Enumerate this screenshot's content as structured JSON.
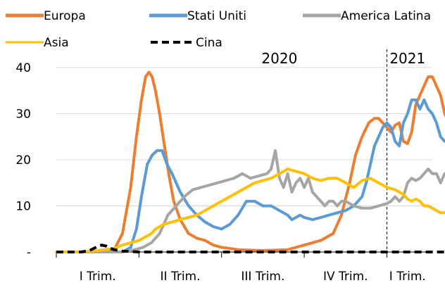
{
  "chart_data": {
    "type": "line",
    "title": "",
    "xlabel": "",
    "ylabel": "",
    "ylim": [
      0,
      40
    ],
    "y_ticks": [
      "-",
      "10",
      "20",
      "30",
      "40"
    ],
    "y_tick_values": [
      0,
      10,
      20,
      30,
      40
    ],
    "x_tick_labels": [
      "I Trim.",
      "II Trim.",
      "III Trim.",
      "IV Trim.",
      "I Trim."
    ],
    "x_tick_positions": [
      0.5,
      1.5,
      2.5,
      3.5,
      4.25
    ],
    "xlim": [
      0,
      4.55
    ],
    "quarter_boundaries": [
      1,
      2,
      3,
      4
    ],
    "year_labels": [
      {
        "text": "2020",
        "x": 2.7
      },
      {
        "text": "2021",
        "x": 4.25
      }
    ],
    "year_divider_x": 4.0,
    "grid": "horizontal",
    "legend_position": "top",
    "series": [
      {
        "name": "Europa",
        "color": "#ED7D31",
        "dash": "solid",
        "points": [
          [
            0.0,
            0
          ],
          [
            0.55,
            0
          ],
          [
            0.7,
            0.5
          ],
          [
            0.8,
            4
          ],
          [
            0.9,
            14
          ],
          [
            0.97,
            25
          ],
          [
            1.03,
            33
          ],
          [
            1.08,
            38
          ],
          [
            1.12,
            39
          ],
          [
            1.16,
            38
          ],
          [
            1.2,
            35
          ],
          [
            1.25,
            30
          ],
          [
            1.3,
            24
          ],
          [
            1.36,
            17
          ],
          [
            1.42,
            11
          ],
          [
            1.5,
            7
          ],
          [
            1.6,
            4
          ],
          [
            1.7,
            3
          ],
          [
            1.8,
            2.5
          ],
          [
            1.9,
            1.5
          ],
          [
            2.0,
            1
          ],
          [
            2.2,
            0.5
          ],
          [
            2.5,
            0.3
          ],
          [
            2.8,
            0.5
          ],
          [
            3.0,
            1.5
          ],
          [
            3.2,
            2.5
          ],
          [
            3.35,
            4
          ],
          [
            3.45,
            8
          ],
          [
            3.55,
            15
          ],
          [
            3.62,
            21
          ],
          [
            3.7,
            25
          ],
          [
            3.78,
            28
          ],
          [
            3.85,
            29
          ],
          [
            3.9,
            29
          ],
          [
            3.95,
            28
          ],
          [
            4.0,
            27
          ],
          [
            4.05,
            26
          ],
          [
            4.1,
            27.5
          ],
          [
            4.15,
            28
          ],
          [
            4.2,
            24
          ],
          [
            4.25,
            23.5
          ],
          [
            4.3,
            26
          ],
          [
            4.35,
            32
          ],
          [
            4.4,
            34
          ],
          [
            4.45,
            36
          ],
          [
            4.5,
            38
          ],
          [
            4.55,
            38
          ],
          [
            4.6,
            36
          ],
          [
            4.65,
            34
          ],
          [
            4.7,
            30
          ],
          [
            4.75,
            28
          ],
          [
            4.78,
            26
          ]
        ]
      },
      {
        "name": "Stati Uniti",
        "color": "#5B9BD5",
        "dash": "solid",
        "points": [
          [
            0.0,
            0
          ],
          [
            0.8,
            0
          ],
          [
            0.9,
            1
          ],
          [
            0.97,
            5
          ],
          [
            1.03,
            12
          ],
          [
            1.1,
            19
          ],
          [
            1.16,
            21
          ],
          [
            1.22,
            22
          ],
          [
            1.28,
            22
          ],
          [
            1.34,
            19
          ],
          [
            1.4,
            17
          ],
          [
            1.5,
            13
          ],
          [
            1.6,
            10
          ],
          [
            1.7,
            8
          ],
          [
            1.8,
            6.5
          ],
          [
            1.9,
            5.5
          ],
          [
            2.0,
            5
          ],
          [
            2.1,
            6
          ],
          [
            2.2,
            8
          ],
          [
            2.3,
            11
          ],
          [
            2.4,
            11
          ],
          [
            2.5,
            10
          ],
          [
            2.6,
            10
          ],
          [
            2.7,
            9
          ],
          [
            2.8,
            8
          ],
          [
            2.85,
            7
          ],
          [
            2.9,
            7.5
          ],
          [
            2.95,
            8
          ],
          [
            3.0,
            7.5
          ],
          [
            3.1,
            7
          ],
          [
            3.2,
            7.5
          ],
          [
            3.3,
            8
          ],
          [
            3.4,
            8.5
          ],
          [
            3.5,
            9
          ],
          [
            3.6,
            10
          ],
          [
            3.7,
            12
          ],
          [
            3.75,
            15
          ],
          [
            3.8,
            19
          ],
          [
            3.85,
            23
          ],
          [
            3.9,
            25
          ],
          [
            3.95,
            27
          ],
          [
            4.0,
            28
          ],
          [
            4.05,
            27
          ],
          [
            4.1,
            24
          ],
          [
            4.15,
            23
          ],
          [
            4.2,
            28
          ],
          [
            4.25,
            30
          ],
          [
            4.3,
            33
          ],
          [
            4.35,
            33
          ],
          [
            4.4,
            31
          ],
          [
            4.45,
            33
          ],
          [
            4.5,
            31
          ],
          [
            4.55,
            30
          ],
          [
            4.6,
            28
          ],
          [
            4.65,
            25
          ],
          [
            4.7,
            24
          ],
          [
            4.75,
            24
          ],
          [
            4.78,
            23
          ]
        ]
      },
      {
        "name": "America Latina",
        "color": "#A5A5A5",
        "dash": "solid",
        "points": [
          [
            0.0,
            0
          ],
          [
            0.8,
            0
          ],
          [
            0.95,
            0.5
          ],
          [
            1.05,
            1
          ],
          [
            1.15,
            2
          ],
          [
            1.25,
            4
          ],
          [
            1.35,
            8
          ],
          [
            1.45,
            10
          ],
          [
            1.55,
            12
          ],
          [
            1.65,
            13.5
          ],
          [
            1.75,
            14
          ],
          [
            1.85,
            14.5
          ],
          [
            1.95,
            15
          ],
          [
            2.05,
            15.5
          ],
          [
            2.15,
            16
          ],
          [
            2.25,
            17
          ],
          [
            2.35,
            16
          ],
          [
            2.45,
            16.5
          ],
          [
            2.55,
            17
          ],
          [
            2.6,
            18
          ],
          [
            2.65,
            22
          ],
          [
            2.7,
            16
          ],
          [
            2.75,
            14
          ],
          [
            2.8,
            17
          ],
          [
            2.85,
            13
          ],
          [
            2.9,
            15
          ],
          [
            2.95,
            16
          ],
          [
            3.0,
            14
          ],
          [
            3.05,
            16
          ],
          [
            3.1,
            13
          ],
          [
            3.15,
            12
          ],
          [
            3.2,
            11
          ],
          [
            3.25,
            10
          ],
          [
            3.3,
            11
          ],
          [
            3.35,
            11
          ],
          [
            3.4,
            10
          ],
          [
            3.45,
            11
          ],
          [
            3.5,
            11
          ],
          [
            3.6,
            10
          ],
          [
            3.7,
            9.5
          ],
          [
            3.8,
            9.5
          ],
          [
            3.9,
            10
          ],
          [
            4.0,
            10.5
          ],
          [
            4.05,
            11
          ],
          [
            4.1,
            12
          ],
          [
            4.15,
            11
          ],
          [
            4.2,
            12
          ],
          [
            4.25,
            15
          ],
          [
            4.3,
            16
          ],
          [
            4.35,
            15.5
          ],
          [
            4.4,
            16
          ],
          [
            4.45,
            17
          ],
          [
            4.5,
            18
          ],
          [
            4.55,
            17
          ],
          [
            4.6,
            17
          ],
          [
            4.65,
            15
          ],
          [
            4.7,
            17
          ],
          [
            4.75,
            16
          ],
          [
            4.78,
            17
          ]
        ]
      },
      {
        "name": "Asia",
        "color": "#FFC000",
        "dash": "solid",
        "points": [
          [
            0.0,
            0
          ],
          [
            0.3,
            0
          ],
          [
            0.5,
            0.3
          ],
          [
            0.7,
            0.8
          ],
          [
            0.8,
            1.5
          ],
          [
            0.9,
            2
          ],
          [
            1.0,
            2.5
          ],
          [
            1.05,
            3
          ],
          [
            1.1,
            3.5
          ],
          [
            1.15,
            4
          ],
          [
            1.2,
            5
          ],
          [
            1.25,
            5.5
          ],
          [
            1.3,
            6
          ],
          [
            1.4,
            6.5
          ],
          [
            1.5,
            7
          ],
          [
            1.6,
            7.5
          ],
          [
            1.7,
            8
          ],
          [
            1.8,
            9
          ],
          [
            1.9,
            10
          ],
          [
            2.0,
            11
          ],
          [
            2.1,
            12
          ],
          [
            2.2,
            13
          ],
          [
            2.3,
            14
          ],
          [
            2.4,
            15
          ],
          [
            2.5,
            15.5
          ],
          [
            2.6,
            16
          ],
          [
            2.7,
            17
          ],
          [
            2.8,
            18
          ],
          [
            2.9,
            17.5
          ],
          [
            3.0,
            17
          ],
          [
            3.1,
            16
          ],
          [
            3.2,
            15.5
          ],
          [
            3.3,
            16
          ],
          [
            3.4,
            16
          ],
          [
            3.5,
            15
          ],
          [
            3.6,
            14
          ],
          [
            3.7,
            15.5
          ],
          [
            3.8,
            16
          ],
          [
            3.9,
            15
          ],
          [
            4.0,
            14
          ],
          [
            4.1,
            13.5
          ],
          [
            4.2,
            12.5
          ],
          [
            4.25,
            11.5
          ],
          [
            4.3,
            11
          ],
          [
            4.35,
            11.5
          ],
          [
            4.4,
            11
          ],
          [
            4.45,
            10
          ],
          [
            4.5,
            10
          ],
          [
            4.55,
            9.5
          ],
          [
            4.6,
            9
          ],
          [
            4.65,
            8.5
          ],
          [
            4.7,
            8.5
          ],
          [
            4.75,
            8.5
          ],
          [
            4.78,
            8
          ]
        ]
      },
      {
        "name": "Cina",
        "color": "#000000",
        "dash": "dashed",
        "points": [
          [
            0.0,
            0
          ],
          [
            0.3,
            0
          ],
          [
            0.4,
            0.3
          ],
          [
            0.5,
            1.2
          ],
          [
            0.55,
            1.5
          ],
          [
            0.6,
            1.3
          ],
          [
            0.65,
            0.8
          ],
          [
            0.7,
            0.5
          ],
          [
            0.8,
            0.2
          ],
          [
            1.0,
            0
          ],
          [
            1.5,
            0
          ],
          [
            2.0,
            0
          ],
          [
            2.5,
            0
          ],
          [
            3.0,
            0
          ],
          [
            3.5,
            0
          ],
          [
            4.0,
            0
          ],
          [
            4.5,
            0
          ],
          [
            4.78,
            0
          ]
        ]
      }
    ]
  }
}
